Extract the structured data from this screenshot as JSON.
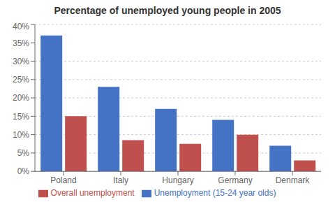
{
  "chart_data": {
    "type": "bar",
    "title": "Percentage of unemployed young people in 2005",
    "categories": [
      "Poland",
      "Italy",
      "Hungary",
      "Germany",
      "Denmark"
    ],
    "series": [
      {
        "name": "Unemployment (15-24 year olds)",
        "color": "#4472C4",
        "values": [
          37,
          23,
          17,
          14,
          7
        ]
      },
      {
        "name": "Overall unemployment",
        "color": "#C0504D",
        "values": [
          15,
          8.5,
          7.5,
          10,
          3
        ]
      }
    ],
    "ylim": [
      0,
      40
    ],
    "yticks": [
      {
        "value": 0,
        "label": "0%"
      },
      {
        "value": 5,
        "label": "5%"
      },
      {
        "value": 10,
        "label": "10%"
      },
      {
        "value": 15,
        "label": "15%"
      },
      {
        "value": 20,
        "label": "20%"
      },
      {
        "value": 25,
        "label": "25%"
      },
      {
        "value": 30,
        "label": "30%"
      },
      {
        "value": 35,
        "label": "35%"
      },
      {
        "value": 40,
        "label": "40%"
      }
    ],
    "grid": true,
    "legend": "bottom"
  }
}
